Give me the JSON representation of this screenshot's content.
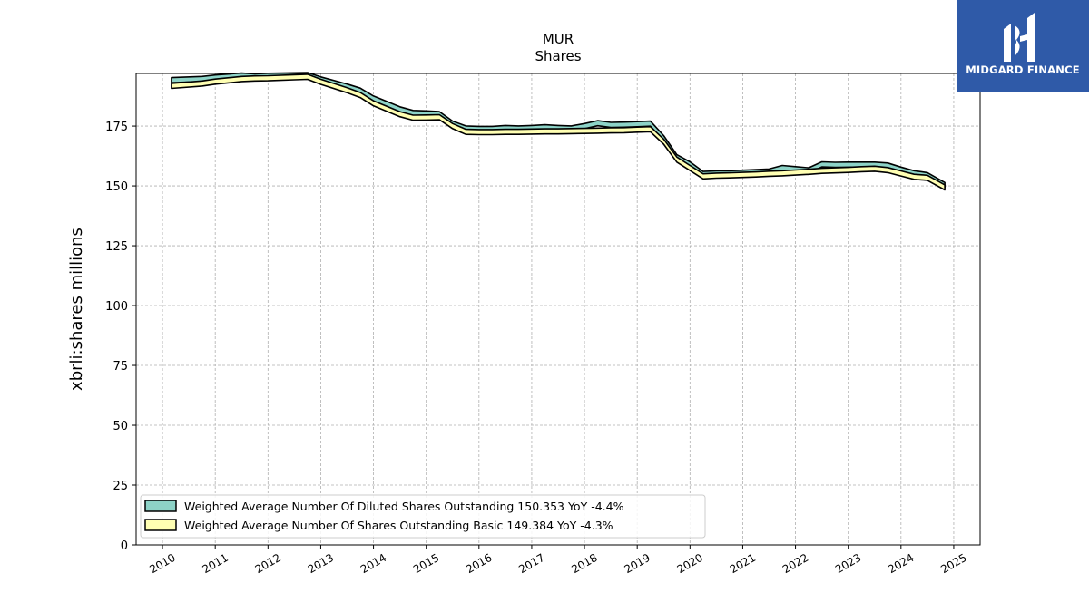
{
  "logo": {
    "text": "MIDGARD FINANCE"
  },
  "chart_data": {
    "type": "area",
    "title": "MUR",
    "subtitle": "Shares",
    "ylabel": "xbrli:shares millions",
    "xlabel": "",
    "ylim": [
      0,
      197
    ],
    "xlim": [
      2009.5,
      2025.5
    ],
    "yticks": [
      0,
      25,
      50,
      75,
      100,
      125,
      150,
      175
    ],
    "xticks": [
      "2010",
      "2011",
      "2012",
      "2013",
      "2014",
      "2015",
      "2016",
      "2017",
      "2018",
      "2019",
      "2020",
      "2021",
      "2022",
      "2023",
      "2024",
      "2025"
    ],
    "grid": true,
    "legend_position": "lower-left",
    "series": [
      {
        "name": "Weighted Average Number Of Diluted Shares Outstanding",
        "legend_label": "Weighted Average Number Of Diluted Shares Outstanding  150.353 YoY -4.4%",
        "color": "#8dd3c7",
        "x": [
          2010.17,
          2010.75,
          2011.0,
          2011.5,
          2011.75,
          2012.0,
          2012.5,
          2012.75,
          2013.0,
          2013.5,
          2013.75,
          2014.0,
          2014.5,
          2014.75,
          2015.0,
          2015.25,
          2015.5,
          2015.75,
          2016.0,
          2016.25,
          2016.5,
          2016.75,
          2017.0,
          2017.25,
          2017.5,
          2017.75,
          2018.0,
          2018.25,
          2018.5,
          2018.75,
          2019.0,
          2019.25,
          2019.5,
          2019.75,
          2020.0,
          2020.25,
          2020.5,
          2020.75,
          2021.0,
          2021.25,
          2021.5,
          2021.75,
          2022.0,
          2022.25,
          2022.5,
          2022.75,
          2023.0,
          2023.25,
          2023.5,
          2023.75,
          2024.0,
          2024.25,
          2024.5,
          2024.83
        ],
        "values": [
          194.2,
          194.7,
          195.3,
          196.1,
          195.8,
          196.0,
          196.2,
          196.3,
          194.5,
          191.5,
          189.8,
          186.5,
          182.0,
          180.5,
          180.3,
          180.0,
          176.0,
          174.0,
          173.8,
          173.8,
          174.2,
          174.0,
          174.2,
          174.5,
          174.2,
          174.0,
          175.0,
          176.2,
          175.5,
          175.6,
          175.8,
          176.0,
          170.0,
          162.0,
          159.0,
          155.0,
          155.2,
          155.3,
          155.5,
          155.8,
          156.0,
          157.5,
          157.0,
          156.5,
          159.0,
          158.8,
          158.9,
          158.9,
          158.9,
          158.5,
          156.8,
          155.3,
          154.5,
          150.353
        ]
      },
      {
        "name": "Weighted Average Number Of Shares Outstanding Basic",
        "legend_label": "Weighted Average Number Of Shares Outstanding Basic  149.384 YoY -4.3%",
        "color": "#ffffb3",
        "x": [
          2010.17,
          2010.75,
          2011.0,
          2011.5,
          2011.75,
          2012.0,
          2012.5,
          2012.75,
          2013.0,
          2013.5,
          2013.75,
          2014.0,
          2014.5,
          2014.75,
          2015.0,
          2015.25,
          2015.5,
          2015.75,
          2016.0,
          2016.25,
          2016.5,
          2016.75,
          2017.0,
          2017.25,
          2017.5,
          2017.75,
          2018.0,
          2018.25,
          2018.5,
          2018.75,
          2019.0,
          2019.25,
          2019.5,
          2019.75,
          2020.0,
          2020.25,
          2020.5,
          2020.75,
          2021.0,
          2021.25,
          2021.5,
          2021.75,
          2022.0,
          2022.25,
          2022.5,
          2022.75,
          2023.0,
          2023.25,
          2023.5,
          2023.75,
          2024.0,
          2024.25,
          2024.5,
          2024.83
        ],
        "values": [
          191.8,
          192.8,
          193.6,
          194.7,
          194.9,
          195.0,
          195.4,
          195.6,
          193.5,
          190.0,
          188.0,
          184.5,
          180.0,
          178.5,
          178.6,
          178.7,
          175.0,
          172.6,
          172.5,
          172.5,
          172.6,
          172.6,
          172.7,
          172.8,
          172.8,
          172.9,
          173.0,
          173.1,
          173.2,
          173.3,
          173.5,
          173.7,
          168.5,
          161.0,
          157.5,
          154.0,
          154.3,
          154.4,
          154.6,
          154.8,
          155.1,
          155.3,
          155.6,
          155.9,
          156.3,
          156.5,
          156.7,
          157.0,
          157.2,
          156.6,
          155.2,
          153.8,
          153.4,
          149.384
        ]
      }
    ]
  }
}
